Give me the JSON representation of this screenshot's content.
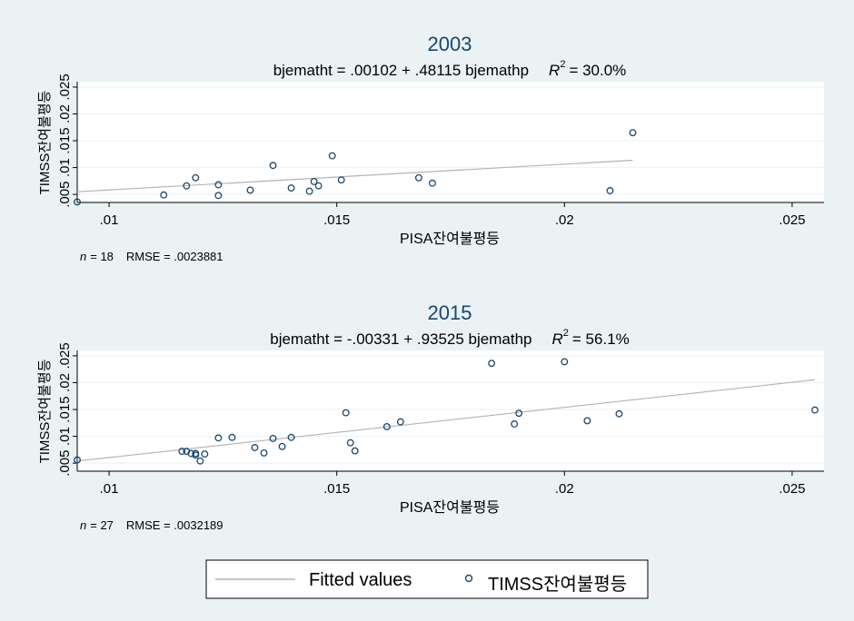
{
  "chart_data": [
    {
      "type": "scatter",
      "title": "2003",
      "subtitle": {
        "equation": "bjematht = .00102 + .48115 bjemathp",
        "r2_symbol": "R",
        "r2_sup": "2",
        "r2_value": "= 30.0%"
      },
      "xlabel": "PISA잔여불평등",
      "ylabel": "TIMSS잔여불평등",
      "xlim": [
        0.0093,
        0.0257
      ],
      "ylim": [
        0.0035,
        0.026
      ],
      "xticks": [
        {
          "value": 0.01,
          "label": ".01"
        },
        {
          "value": 0.015,
          "label": ".015"
        },
        {
          "value": 0.02,
          "label": ".02"
        },
        {
          "value": 0.025,
          "label": ".025"
        }
      ],
      "yticks": [
        {
          "value": 0.005,
          "label": ".005"
        },
        {
          "value": 0.01,
          "label": ".01"
        },
        {
          "value": 0.015,
          "label": ".015"
        },
        {
          "value": 0.02,
          "label": ".02"
        },
        {
          "value": 0.025,
          "label": ".025"
        }
      ],
      "fit": {
        "intercept": 0.00102,
        "slope": 0.48115,
        "x_range": [
          0.0093,
          0.0215
        ]
      },
      "note": {
        "n_label": "n",
        "n_value": "= 18",
        "rmse": "RMSE =  .0023881"
      },
      "points": [
        {
          "x": 0.0093,
          "y": 0.0036
        },
        {
          "x": 0.0112,
          "y": 0.0049
        },
        {
          "x": 0.0117,
          "y": 0.0066
        },
        {
          "x": 0.0119,
          "y": 0.0081
        },
        {
          "x": 0.0124,
          "y": 0.0048
        },
        {
          "x": 0.0124,
          "y": 0.0068
        },
        {
          "x": 0.0131,
          "y": 0.0058
        },
        {
          "x": 0.0136,
          "y": 0.0104
        },
        {
          "x": 0.014,
          "y": 0.0062
        },
        {
          "x": 0.0144,
          "y": 0.0056
        },
        {
          "x": 0.0145,
          "y": 0.0074
        },
        {
          "x": 0.0146,
          "y": 0.0066
        },
        {
          "x": 0.0149,
          "y": 0.0122
        },
        {
          "x": 0.0151,
          "y": 0.0077
        },
        {
          "x": 0.0168,
          "y": 0.0081
        },
        {
          "x": 0.0171,
          "y": 0.0071
        },
        {
          "x": 0.021,
          "y": 0.0057
        },
        {
          "x": 0.0215,
          "y": 0.0165
        }
      ]
    },
    {
      "type": "scatter",
      "title": "2015",
      "subtitle": {
        "equation": "bjematht = -.00331 + .93525 bjemathp",
        "r2_symbol": "R",
        "r2_sup": "2",
        "r2_value": "= 56.1%"
      },
      "xlabel": "PISA잔여불평등",
      "ylabel": "TIMSS잔여불평등",
      "xlim": [
        0.0093,
        0.0257
      ],
      "ylim": [
        0.0035,
        0.026
      ],
      "xticks": [
        {
          "value": 0.01,
          "label": ".01"
        },
        {
          "value": 0.015,
          "label": ".015"
        },
        {
          "value": 0.02,
          "label": ".02"
        },
        {
          "value": 0.025,
          "label": ".025"
        }
      ],
      "yticks": [
        {
          "value": 0.005,
          "label": ".005"
        },
        {
          "value": 0.01,
          "label": ".01"
        },
        {
          "value": 0.015,
          "label": ".015"
        },
        {
          "value": 0.02,
          "label": ".02"
        },
        {
          "value": 0.025,
          "label": ".025"
        }
      ],
      "fit": {
        "intercept": -0.00331,
        "slope": 0.93525,
        "x_range": [
          0.0093,
          0.0255
        ]
      },
      "note": {
        "n_label": "n",
        "n_value": "= 27",
        "rmse": "RMSE =  .0032189"
      },
      "points": [
        {
          "x": 0.0093,
          "y": 0.0056
        },
        {
          "x": 0.0116,
          "y": 0.0072
        },
        {
          "x": 0.0117,
          "y": 0.0072
        },
        {
          "x": 0.0118,
          "y": 0.0068
        },
        {
          "x": 0.0119,
          "y": 0.0065
        },
        {
          "x": 0.0119,
          "y": 0.0068
        },
        {
          "x": 0.012,
          "y": 0.0054
        },
        {
          "x": 0.0121,
          "y": 0.0067
        },
        {
          "x": 0.0124,
          "y": 0.0097
        },
        {
          "x": 0.0127,
          "y": 0.0098
        },
        {
          "x": 0.0132,
          "y": 0.0079
        },
        {
          "x": 0.0134,
          "y": 0.0069
        },
        {
          "x": 0.0136,
          "y": 0.0096
        },
        {
          "x": 0.0138,
          "y": 0.0081
        },
        {
          "x": 0.014,
          "y": 0.0098
        },
        {
          "x": 0.0152,
          "y": 0.0144
        },
        {
          "x": 0.0153,
          "y": 0.0088
        },
        {
          "x": 0.0154,
          "y": 0.0073
        },
        {
          "x": 0.0161,
          "y": 0.0118
        },
        {
          "x": 0.0164,
          "y": 0.0127
        },
        {
          "x": 0.0184,
          "y": 0.0236
        },
        {
          "x": 0.0189,
          "y": 0.0123
        },
        {
          "x": 0.019,
          "y": 0.0143
        },
        {
          "x": 0.02,
          "y": 0.0239
        },
        {
          "x": 0.0205,
          "y": 0.0129
        },
        {
          "x": 0.0212,
          "y": 0.0142
        },
        {
          "x": 0.0255,
          "y": 0.0149
        }
      ]
    }
  ],
  "legend": {
    "placement": "bottom",
    "items": [
      {
        "label": "Fitted values",
        "marker": "line"
      },
      {
        "label": "TIMSS잔여불평등",
        "marker": "hollow-circle"
      }
    ]
  },
  "colors": {
    "background": "#eaf2f3",
    "plot_bg": "#ffffff",
    "title": "#1a476f",
    "marker": "#1a476f",
    "fit_line": "#b3b3b3",
    "grid": "#eaf2f3"
  }
}
